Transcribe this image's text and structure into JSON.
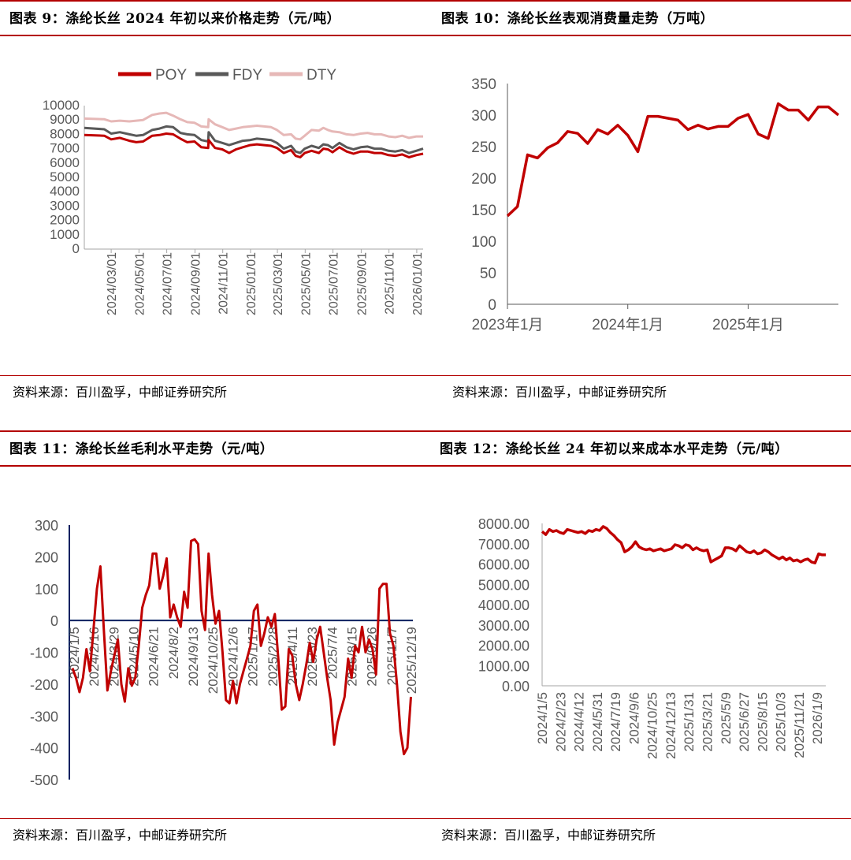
{
  "panels": {
    "p1": {
      "title": "图表 9：涤纶长丝 2024 年初以来价格走势（元/吨）",
      "source": "资料来源：百川盈孚，中邮证券研究所"
    },
    "p2": {
      "title": "图表 10：涤纶长丝表观消费量走势（万吨）",
      "source": "资料来源：百川盈孚，中邮证券研究所"
    },
    "p3": {
      "title": "图表 11：涤纶长丝毛利水平走势（元/吨）",
      "source": "资料来源：百川盈孚，中邮证券研究所"
    },
    "p4": {
      "title": "图表 12：涤纶长丝 24 年初以来成本水平走势（元/吨）",
      "source": "资料来源：百川盈孚，中邮证券研究所"
    }
  },
  "colors": {
    "poy": "#c00000",
    "fdy": "#595959",
    "dty": "#e6b8b7",
    "line": "#c00000",
    "axis": "#002060",
    "rule": "#b30000"
  },
  "chart_data": [
    {
      "type": "line",
      "title": "",
      "legend_position": "top",
      "ylim": [
        0,
        10000
      ],
      "yticks": [
        "10000",
        "9000",
        "8000",
        "7000",
        "6000",
        "5000",
        "4000",
        "3000",
        "2000",
        "1000",
        "0"
      ],
      "x_dates": [
        "2024/01/02",
        "2024/02/15",
        "2024/03/01",
        "2024/03/20",
        "2024/04/10",
        "2024/04/25",
        "2024/05/10",
        "2024/05/30",
        "2024/06/15",
        "2024/06/30",
        "2024/07/15",
        "2024/07/31",
        "2024/08/15",
        "2024/08/31",
        "2024/09/15",
        "2024/09/30",
        "2024/10/01",
        "2024/10/15",
        "2024/10/31",
        "2024/11/15",
        "2024/11/30",
        "2024/12/15",
        "2024/12/31",
        "2025/01/15",
        "2025/01/31",
        "2025/02/15",
        "2025/02/28",
        "2025/03/15",
        "2025/03/31",
        "2025/04/10",
        "2025/04/20",
        "2025/04/30",
        "2025/05/15",
        "2025/05/31",
        "2025/06/10",
        "2025/06/20",
        "2025/06/30",
        "2025/07/15",
        "2025/07/31",
        "2025/08/15",
        "2025/08/31",
        "2025/09/15",
        "2025/09/30",
        "2025/10/15",
        "2025/10/31",
        "2025/11/15",
        "2025/11/30",
        "2025/12/15",
        "2025/12/31",
        "2026/01/15"
      ],
      "x_ticks": [
        "2024/03/01",
        "2024/05/01",
        "2024/07/01",
        "2024/09/01",
        "2024/11/01",
        "2025/01/01",
        "2025/03/01",
        "2025/05/01",
        "2025/07/01",
        "2025/09/01",
        "2025/11/01",
        "2026/01/01"
      ],
      "series": [
        {
          "name": "POY",
          "values": [
            7950,
            7900,
            7650,
            7750,
            7550,
            7450,
            7500,
            7900,
            7950,
            8050,
            8000,
            7700,
            7450,
            7500,
            7100,
            7050,
            7600,
            7050,
            6950,
            6700,
            6950,
            7100,
            7250,
            7300,
            7250,
            7200,
            7050,
            6700,
            6900,
            6500,
            6400,
            6700,
            6850,
            6700,
            7000,
            6950,
            6750,
            7100,
            6800,
            6650,
            6800,
            6800,
            6700,
            6700,
            6550,
            6500,
            6600,
            6400,
            6550,
            6650
          ]
        },
        {
          "name": "FDY",
          "values": [
            8450,
            8350,
            8050,
            8150,
            8000,
            7900,
            7950,
            8300,
            8400,
            8550,
            8500,
            8100,
            8000,
            7950,
            7600,
            7500,
            8150,
            7550,
            7400,
            7250,
            7400,
            7550,
            7600,
            7700,
            7650,
            7600,
            7400,
            7000,
            7200,
            6800,
            6700,
            7000,
            7200,
            7050,
            7300,
            7250,
            7050,
            7400,
            7100,
            6950,
            7100,
            7150,
            7000,
            7000,
            6850,
            6800,
            6900,
            6700,
            6850,
            7000
          ]
        },
        {
          "name": "DTY",
          "values": [
            9100,
            9050,
            8900,
            8950,
            8900,
            8950,
            9000,
            9350,
            9450,
            9500,
            9300,
            9050,
            8850,
            8800,
            8550,
            8500,
            9050,
            8700,
            8500,
            8300,
            8400,
            8500,
            8550,
            8600,
            8550,
            8500,
            8300,
            7950,
            8000,
            7700,
            7650,
            7900,
            8300,
            8250,
            8450,
            8300,
            8200,
            8150,
            8000,
            7950,
            8050,
            8100,
            8000,
            8000,
            7850,
            7800,
            7900,
            7750,
            7850,
            7850
          ]
        }
      ]
    },
    {
      "type": "line",
      "title": "",
      "ylim": [
        0,
        350
      ],
      "yticks": [
        "350",
        "300",
        "250",
        "200",
        "150",
        "100",
        "50",
        "0"
      ],
      "x_ticks": [
        "2023年1月",
        "2024年1月",
        "2025年1月"
      ],
      "months": [
        "2023-01",
        "2023-02",
        "2023-03",
        "2023-04",
        "2023-05",
        "2023-06",
        "2023-07",
        "2023-08",
        "2023-09",
        "2023-10",
        "2023-11",
        "2023-12",
        "2024-01",
        "2024-02",
        "2024-03",
        "2024-04",
        "2024-05",
        "2024-06",
        "2024-07",
        "2024-08",
        "2024-09",
        "2024-10",
        "2024-11",
        "2024-12",
        "2025-01",
        "2025-02",
        "2025-03",
        "2025-04",
        "2025-05",
        "2025-06",
        "2025-07",
        "2025-08",
        "2025-09",
        "2025-10"
      ],
      "values": [
        140,
        155,
        237,
        232,
        248,
        256,
        274,
        271,
        255,
        277,
        270,
        284,
        268,
        242,
        298,
        298,
        295,
        292,
        277,
        284,
        278,
        282,
        282,
        295,
        301,
        270,
        263,
        318,
        308,
        308,
        292,
        313,
        313,
        300
      ]
    },
    {
      "type": "line",
      "title": "",
      "ylim": [
        -500,
        300
      ],
      "yticks": [
        "300",
        "200",
        "100",
        "0",
        "-100",
        "-200",
        "-300",
        "-400",
        "-500"
      ],
      "x_ticks": [
        "2024/1/5",
        "2024/2/16",
        "2024/3/29",
        "2024/5/10",
        "2024/6/21",
        "2024/8/2",
        "2024/9/13",
        "2024/10/25",
        "2024/12/6",
        "2025/1/17",
        "2025/2/28",
        "2025/4/11",
        "2025/5/23",
        "2025/7/4",
        "2025/8/15",
        "2025/9/26",
        "2025/11/7",
        "2025/12/19"
      ],
      "values": [
        -150,
        -180,
        -225,
        -180,
        -90,
        -160,
        -30,
        100,
        170,
        -30,
        -220,
        -160,
        -110,
        -60,
        -200,
        -255,
        -150,
        -205,
        -180,
        -80,
        40,
        80,
        110,
        210,
        210,
        100,
        140,
        195,
        10,
        50,
        10,
        -20,
        90,
        40,
        250,
        255,
        240,
        30,
        -30,
        210,
        80,
        -10,
        30,
        -100,
        -250,
        -260,
        -190,
        -260,
        -200,
        -160,
        -120,
        -80,
        30,
        50,
        -80,
        -40,
        10,
        -20,
        20,
        -120,
        -280,
        -270,
        -90,
        -110,
        -200,
        -250,
        -200,
        -140,
        -70,
        -130,
        -60,
        -20,
        -100,
        -180,
        -250,
        -390,
        -320,
        -280,
        -240,
        -120,
        -180,
        -80,
        -100,
        -20,
        -100,
        -60,
        -90,
        -170,
        100,
        115,
        115,
        -40,
        -80,
        -200,
        -350,
        -420,
        -400,
        -240
      ]
    },
    {
      "type": "line",
      "title": "",
      "ylim": [
        0,
        8000
      ],
      "yticks": [
        "8000.00",
        "7000.00",
        "6000.00",
        "5000.00",
        "4000.00",
        "3000.00",
        "2000.00",
        "1000.00",
        "0.00"
      ],
      "x_ticks": [
        "2024/1/5",
        "2024/2/23",
        "2024/4/12",
        "2024/5/31",
        "2024/7/19",
        "2024/9/6",
        "2024/10/25",
        "2024/12/13",
        "2025/1/31",
        "2025/3/21",
        "2025/5/9",
        "2025/6/27",
        "2025/8/15",
        "2025/10/3",
        "2025/11/21",
        "2026/1/9"
      ],
      "values": [
        7600,
        7450,
        7700,
        7600,
        7650,
        7550,
        7500,
        7700,
        7650,
        7600,
        7550,
        7600,
        7500,
        7650,
        7600,
        7700,
        7650,
        7850,
        7750,
        7550,
        7400,
        7200,
        7050,
        6600,
        6700,
        6850,
        7100,
        6850,
        6750,
        6700,
        6750,
        6650,
        6700,
        6750,
        6650,
        6700,
        6750,
        6950,
        6900,
        6800,
        6950,
        6900,
        6700,
        6800,
        6700,
        6650,
        6700,
        6100,
        6200,
        6300,
        6400,
        6800,
        6800,
        6750,
        6650,
        6900,
        6750,
        6600,
        6550,
        6650,
        6500,
        6550,
        6700,
        6600,
        6450,
        6350,
        6250,
        6350,
        6200,
        6300,
        6150,
        6200,
        6100,
        6200,
        6250,
        6100,
        6050,
        6500,
        6450,
        6450
      ]
    }
  ]
}
